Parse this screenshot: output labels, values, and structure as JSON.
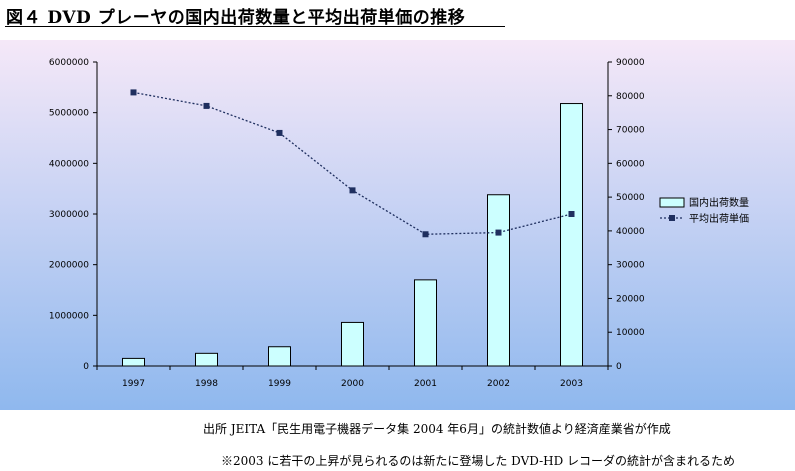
{
  "title": "図４ DVD プレーヤの国内出荷数量と平均出荷単価の推移",
  "source_note": "出所 JEITA「民生用電子機器データ集 2004 年6月」の統計数値より経済産業省が作成",
  "footnote": "※2003 に若干の上昇が見られるのは新たに登場した DVD-HD レコーダの統計が含まれるため",
  "colors": {
    "bar_fill": "#ccffff",
    "line": "#1f2f5f",
    "bg_top": "#f5e8f8",
    "bg_bottom": "#8fb8ee"
  },
  "chart_data": {
    "type": "bar",
    "categories": [
      "1997",
      "1998",
      "1999",
      "2000",
      "2001",
      "2002",
      "2003"
    ],
    "series": [
      {
        "name": "国内出荷数量",
        "type": "bar",
        "axis": "left",
        "values": [
          150000,
          250000,
          380000,
          860000,
          1700000,
          3380000,
          5180000
        ]
      },
      {
        "name": "平均出荷単価",
        "type": "line",
        "axis": "right",
        "style": "dotted",
        "values": [
          81000,
          77000,
          69000,
          52000,
          39000,
          39500,
          45000
        ]
      }
    ],
    "y_left": {
      "min": 0,
      "max": 6000000,
      "ticks": [
        "0",
        "1000000",
        "2000000",
        "3000000",
        "4000000",
        "5000000",
        "6000000"
      ]
    },
    "y_right": {
      "min": 0,
      "max": 90000,
      "ticks": [
        "0",
        "10000",
        "20000",
        "30000",
        "40000",
        "50000",
        "60000",
        "70000",
        "80000",
        "90000"
      ]
    },
    "legend_position": "right",
    "grid": false
  }
}
